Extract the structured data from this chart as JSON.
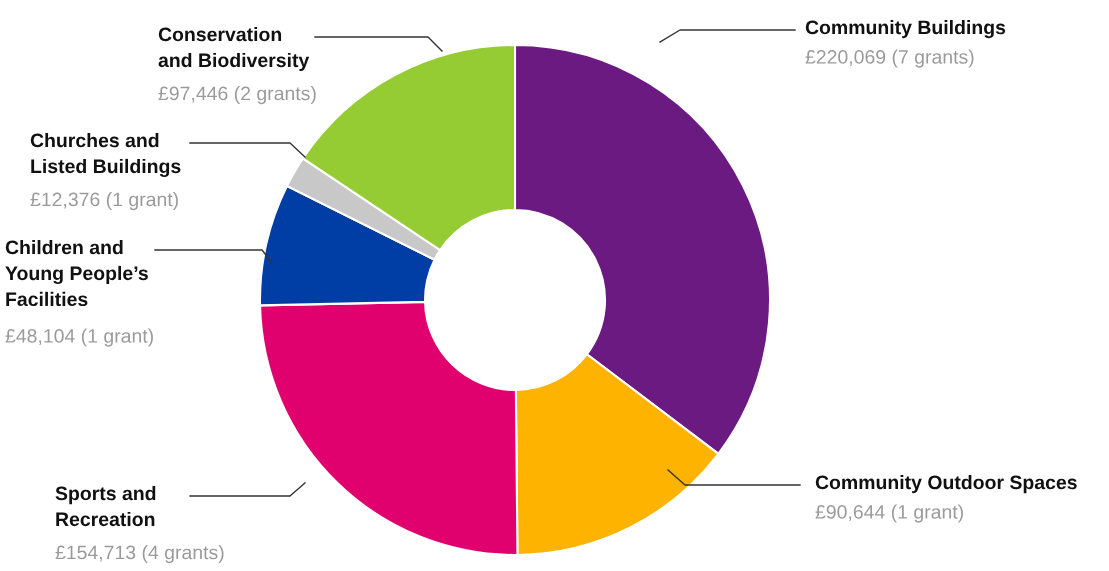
{
  "chart_data": {
    "type": "donut",
    "categories": [
      "Community Buildings",
      "Community Outdoor Spaces",
      "Sports and\nRecreation",
      "Children and\nYoung People’s\nFacilities",
      "Churches and\nListed Buildings",
      "Conservation\nand Biodiversity"
    ],
    "values": [
      220069,
      90644,
      154713,
      48104,
      12376,
      97446
    ],
    "colors": [
      "#6a1a80",
      "#fdb300",
      "#e0006e",
      "#003da5",
      "#c8c8c8",
      "#95cc33"
    ],
    "value_labels": [
      "£220,069 (7 grants)",
      "£90,644 (1 grant)",
      "£154,713 (4 grants)",
      "£48,104 (1 grant)",
      "£12,376 (1 grant)",
      "£97,446 (2 grants)"
    ],
    "legend": false
  }
}
